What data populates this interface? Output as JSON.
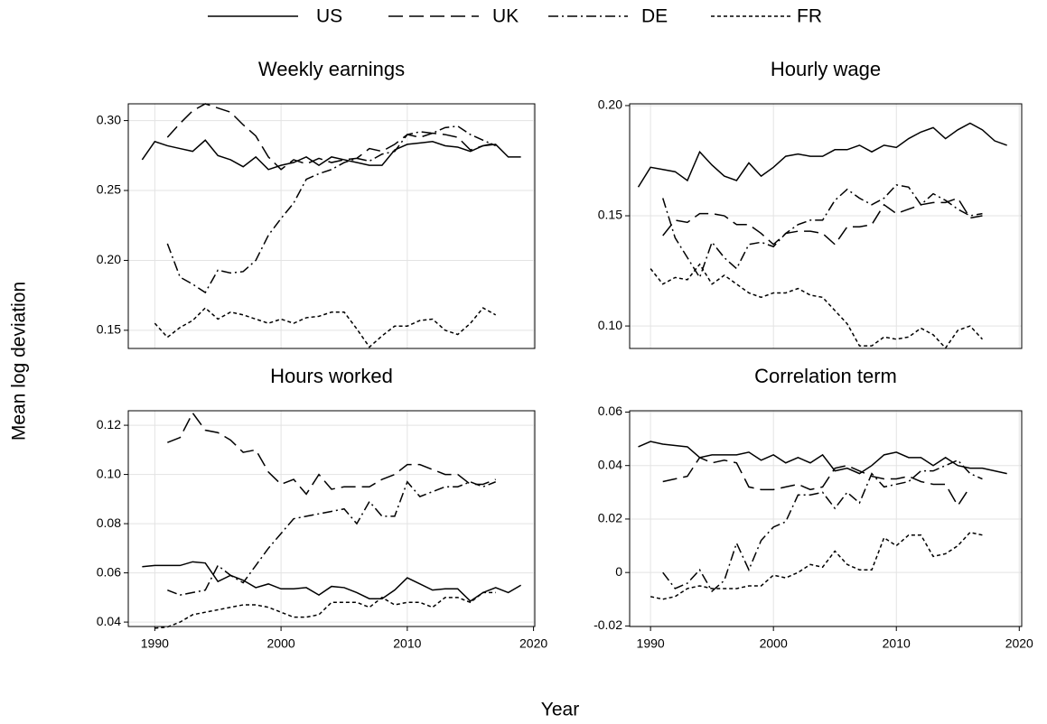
{
  "xlabel": "Year",
  "ylabel": "Mean log deviation",
  "chart_data": [
    {
      "type": "line",
      "title": "Weekly earnings",
      "x": [
        1989,
        1990,
        1991,
        1992,
        1993,
        1994,
        1995,
        1996,
        1997,
        1998,
        1999,
        2000,
        2001,
        2002,
        2003,
        2004,
        2005,
        2006,
        2007,
        2008,
        2009,
        2010,
        2011,
        2012,
        2013,
        2014,
        2015,
        2016,
        2017,
        2018,
        2019
      ],
      "xlim": [
        1987.9,
        2020.1
      ],
      "xticks": [
        1990,
        2000,
        2010,
        2020
      ],
      "ylim": [
        0.137,
        0.312
      ],
      "yticks": [
        0.15,
        {
          "value": 0.2,
          "label": "0.20"
        },
        0.25,
        {
          "value": 0.3,
          "label": "0.30"
        }
      ],
      "grid": true,
      "series": [
        {
          "name": "US",
          "color": "#000000",
          "dash": "solid",
          "values": [
            0.272,
            0.285,
            0.282,
            0.28,
            0.278,
            0.286,
            0.275,
            0.272,
            0.267,
            0.274,
            0.265,
            0.268,
            0.27,
            0.274,
            0.268,
            0.274,
            0.272,
            0.27,
            0.268,
            0.268,
            0.279,
            0.283,
            0.284,
            0.285,
            0.282,
            0.281,
            0.278,
            0.282,
            0.283,
            0.274,
            0.274
          ]
        },
        {
          "name": "UK",
          "color": "#000000",
          "dash": "longdash",
          "values": [
            null,
            null,
            0.288,
            0.298,
            0.307,
            0.312,
            0.309,
            0.306,
            0.297,
            0.289,
            0.274,
            0.265,
            0.272,
            0.269,
            0.273,
            0.27,
            0.272,
            0.273,
            0.28,
            0.278,
            0.283,
            0.29,
            0.288,
            0.291,
            0.29,
            0.288,
            0.279,
            0.282,
            0.284,
            null,
            null
          ]
        },
        {
          "name": "DE",
          "color": "#000000",
          "dash": "dashdot",
          "values": [
            null,
            null,
            0.212,
            0.188,
            0.183,
            0.177,
            0.193,
            0.191,
            0.192,
            0.2,
            0.218,
            0.23,
            0.241,
            0.258,
            0.262,
            0.265,
            0.27,
            0.273,
            0.271,
            0.276,
            0.278,
            0.29,
            0.292,
            0.291,
            0.295,
            0.296,
            0.29,
            0.286,
            0.282,
            null,
            null
          ]
        },
        {
          "name": "FR",
          "color": "#000000",
          "dash": "dash",
          "values": [
            null,
            0.155,
            0.145,
            0.152,
            0.157,
            0.166,
            0.158,
            0.163,
            0.161,
            0.158,
            0.155,
            0.158,
            0.155,
            0.159,
            0.16,
            0.163,
            0.163,
            0.151,
            0.138,
            0.146,
            0.153,
            0.153,
            0.157,
            0.158,
            0.15,
            0.147,
            0.155,
            0.166,
            0.161,
            null,
            null
          ]
        }
      ]
    },
    {
      "type": "line",
      "title": "Hourly wage",
      "x": [
        1989,
        1990,
        1991,
        1992,
        1993,
        1994,
        1995,
        1996,
        1997,
        1998,
        1999,
        2000,
        2001,
        2002,
        2003,
        2004,
        2005,
        2006,
        2007,
        2008,
        2009,
        2010,
        2011,
        2012,
        2013,
        2014,
        2015,
        2016,
        2017,
        2018,
        2019
      ],
      "xlim": [
        1988.3,
        2020.2
      ],
      "xticks": [
        1990,
        2000,
        2010,
        2020
      ],
      "ylim": [
        0.0898,
        0.2008
      ],
      "yticks": [
        {
          "value": 0.1,
          "label": "0.10"
        },
        0.15,
        {
          "value": 0.2,
          "label": "0.20"
        }
      ],
      "grid": true,
      "series": [
        {
          "name": "US",
          "color": "#000000",
          "dash": "solid",
          "values": [
            0.163,
            0.172,
            0.171,
            0.17,
            0.166,
            0.179,
            0.173,
            0.168,
            0.166,
            0.174,
            0.168,
            0.172,
            0.177,
            0.178,
            0.177,
            0.177,
            0.18,
            0.18,
            0.182,
            0.179,
            0.182,
            0.181,
            0.185,
            0.188,
            0.19,
            0.185,
            0.189,
            0.192,
            0.189,
            0.184,
            0.182
          ]
        },
        {
          "name": "UK",
          "color": "#000000",
          "dash": "longdash",
          "values": [
            null,
            null,
            0.141,
            0.148,
            0.147,
            0.151,
            0.151,
            0.15,
            0.146,
            0.146,
            0.142,
            0.137,
            0.142,
            0.143,
            0.143,
            0.142,
            0.137,
            0.145,
            0.145,
            0.146,
            0.155,
            0.151,
            0.153,
            0.155,
            0.156,
            0.156,
            0.158,
            0.149,
            0.15,
            null,
            null
          ]
        },
        {
          "name": "DE",
          "color": "#000000",
          "dash": "dashdot",
          "values": [
            null,
            null,
            0.158,
            0.14,
            0.131,
            0.122,
            0.138,
            0.131,
            0.126,
            0.137,
            0.138,
            0.136,
            0.142,
            0.146,
            0.148,
            0.148,
            0.157,
            0.162,
            0.158,
            0.155,
            0.158,
            0.164,
            0.163,
            0.155,
            0.16,
            0.157,
            0.153,
            0.15,
            0.151,
            null,
            null
          ]
        },
        {
          "name": "FR",
          "color": "#000000",
          "dash": "dash",
          "values": [
            null,
            0.126,
            0.119,
            0.122,
            0.121,
            0.128,
            0.119,
            0.123,
            0.119,
            0.115,
            0.113,
            0.115,
            0.115,
            0.117,
            0.114,
            0.113,
            0.107,
            0.101,
            0.091,
            0.091,
            0.095,
            0.094,
            0.095,
            0.099,
            0.096,
            0.09,
            0.098,
            0.1,
            0.094,
            null,
            null
          ]
        }
      ]
    },
    {
      "type": "line",
      "title": "Hours worked",
      "x": [
        1989,
        1990,
        1991,
        1992,
        1993,
        1994,
        1995,
        1996,
        1997,
        1998,
        1999,
        2000,
        2001,
        2002,
        2003,
        2004,
        2005,
        2006,
        2007,
        2008,
        2009,
        2010,
        2011,
        2012,
        2013,
        2014,
        2015,
        2016,
        2017,
        2018,
        2019
      ],
      "xlim": [
        1987.9,
        2020.1
      ],
      "xticks": [
        1990,
        2000,
        2010,
        2020
      ],
      "ylim": [
        0.0382,
        0.1259
      ],
      "yticks": [
        0.04,
        0.06,
        0.08,
        {
          "value": 0.1,
          "label": "0.10"
        },
        0.12
      ],
      "grid": true,
      "series": [
        {
          "name": "US",
          "color": "#000000",
          "dash": "solid",
          "values": [
            0.0625,
            0.063,
            0.063,
            0.063,
            0.0645,
            0.064,
            0.0565,
            0.059,
            0.057,
            0.054,
            0.0555,
            0.0535,
            0.0535,
            0.054,
            0.051,
            0.0545,
            0.054,
            0.052,
            0.0495,
            0.0495,
            0.053,
            0.058,
            0.0555,
            0.053,
            0.0535,
            0.0535,
            0.0485,
            0.052,
            0.054,
            0.052,
            0.055
          ]
        },
        {
          "name": "UK",
          "color": "#000000",
          "dash": "longdash",
          "values": [
            null,
            null,
            0.113,
            0.115,
            0.125,
            0.118,
            0.117,
            0.114,
            0.109,
            0.11,
            0.101,
            0.096,
            0.098,
            0.092,
            0.1,
            0.094,
            0.095,
            0.095,
            0.095,
            0.098,
            0.1,
            0.104,
            0.104,
            0.102,
            0.1,
            0.1,
            0.096,
            0.096,
            0.098,
            null,
            null
          ]
        },
        {
          "name": "DE",
          "color": "#000000",
          "dash": "dashdot",
          "values": [
            null,
            null,
            0.053,
            0.051,
            0.052,
            0.053,
            0.063,
            0.059,
            0.056,
            0.063,
            0.07,
            0.076,
            0.082,
            0.083,
            0.084,
            0.085,
            0.086,
            0.08,
            0.089,
            0.083,
            0.083,
            0.097,
            0.091,
            0.093,
            0.095,
            0.095,
            0.097,
            0.095,
            0.097,
            null,
            null
          ]
        },
        {
          "name": "FR",
          "color": "#000000",
          "dash": "dash",
          "values": [
            null,
            0.0375,
            0.038,
            0.04,
            0.043,
            0.044,
            0.045,
            0.046,
            0.047,
            0.047,
            0.046,
            0.044,
            0.042,
            0.042,
            0.043,
            0.048,
            0.048,
            0.048,
            0.046,
            0.05,
            0.047,
            0.048,
            0.048,
            0.046,
            0.05,
            0.05,
            0.048,
            0.052,
            0.052,
            null,
            null
          ]
        }
      ]
    },
    {
      "type": "line",
      "title": "Correlation term",
      "x": [
        1989,
        1990,
        1991,
        1992,
        1993,
        1994,
        1995,
        1996,
        1997,
        1998,
        1999,
        2000,
        2001,
        2002,
        2003,
        2004,
        2005,
        2006,
        2007,
        2008,
        2009,
        2010,
        2011,
        2012,
        2013,
        2014,
        2015,
        2016,
        2017,
        2018,
        2019
      ],
      "xlim": [
        1988.3,
        2020.2
      ],
      "xticks": [
        1990,
        2000,
        2010,
        2020
      ],
      "ylim": [
        -0.0202,
        0.0605
      ],
      "yticks": [
        -0.02,
        0,
        0.02,
        0.04,
        0.06
      ],
      "grid": true,
      "series": [
        {
          "name": "US",
          "color": "#000000",
          "dash": "solid",
          "values": [
            0.047,
            0.049,
            0.048,
            0.0475,
            0.047,
            0.043,
            0.044,
            0.044,
            0.044,
            0.045,
            0.042,
            0.044,
            0.041,
            0.043,
            0.041,
            0.044,
            0.038,
            0.039,
            0.037,
            0.04,
            0.044,
            0.045,
            0.043,
            0.043,
            0.04,
            0.043,
            0.04,
            0.039,
            0.039,
            0.038,
            0.037
          ]
        },
        {
          "name": "UK",
          "color": "#000000",
          "dash": "longdash",
          "values": [
            null,
            null,
            0.034,
            0.035,
            0.036,
            0.043,
            0.041,
            0.042,
            0.041,
            0.032,
            0.031,
            0.031,
            0.032,
            0.033,
            0.031,
            0.032,
            0.039,
            0.04,
            0.038,
            0.036,
            0.035,
            0.035,
            0.036,
            0.034,
            0.033,
            0.033,
            0.025,
            0.032,
            null,
            null,
            null
          ]
        },
        {
          "name": "DE",
          "color": "#000000",
          "dash": "dashdot",
          "values": [
            null,
            null,
            0.0,
            -0.006,
            -0.004,
            0.001,
            -0.007,
            -0.003,
            0.011,
            0.001,
            0.012,
            0.017,
            0.019,
            0.029,
            0.029,
            0.03,
            0.024,
            0.03,
            0.026,
            0.037,
            0.032,
            0.033,
            0.034,
            0.038,
            0.038,
            0.04,
            0.042,
            0.037,
            0.035,
            null,
            null
          ]
        },
        {
          "name": "FR",
          "color": "#000000",
          "dash": "dash",
          "values": [
            null,
            -0.009,
            -0.01,
            -0.009,
            -0.006,
            -0.005,
            -0.006,
            -0.006,
            -0.006,
            -0.005,
            -0.005,
            -0.001,
            -0.002,
            0.0,
            0.003,
            0.002,
            0.008,
            0.003,
            0.001,
            0.001,
            0.013,
            0.01,
            0.014,
            0.014,
            0.006,
            0.007,
            0.01,
            0.015,
            0.014,
            null,
            null
          ]
        }
      ]
    }
  ]
}
